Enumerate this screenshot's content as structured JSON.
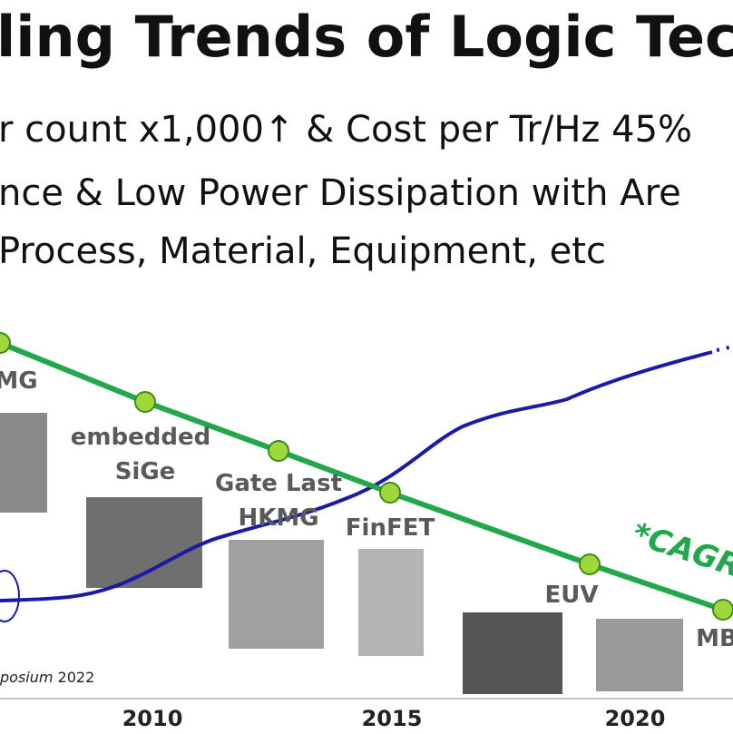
{
  "header": {
    "title": "ling Trends of Logic Techn"
  },
  "bullets": [
    "r count x1,000↑ & Cost per Tr/Hz 45%",
    "nce & Low Power Dissipation with Are",
    "Process, Material, Equipment, etc"
  ],
  "milestones": [
    {
      "lines": [
        "MG"
      ]
    },
    {
      "lines": [
        "embedded",
        "SiGe"
      ]
    },
    {
      "lines": [
        "Gate Last",
        "HKMG"
      ]
    },
    {
      "lines": [
        "FinFET"
      ]
    },
    {
      "lines": [
        "EUV"
      ]
    },
    {
      "lines": [
        "MB"
      ]
    }
  ],
  "annotation": "*CAGR",
  "source": {
    "italic": "posium",
    "year": "2022"
  },
  "axis_labels": [
    "2010",
    "2015",
    "2020"
  ]
}
